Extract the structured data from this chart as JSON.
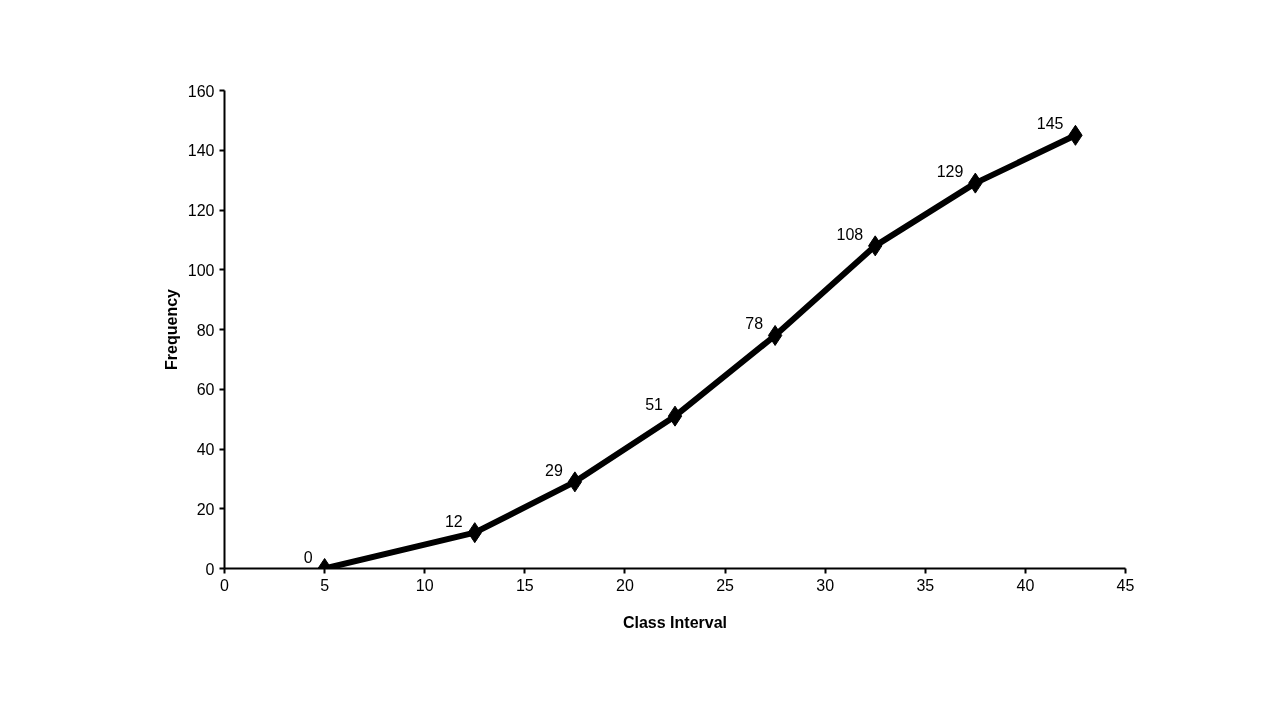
{
  "chart_data": {
    "type": "line",
    "xlabel": "Class Interval",
    "ylabel": "Frequency",
    "x": [
      5,
      12.5,
      17.5,
      22.5,
      27.5,
      32.5,
      37.5,
      42.5
    ],
    "series": [
      {
        "color": "#000000",
        "values": [
          0,
          12,
          29,
          51,
          78,
          108,
          129,
          145
        ]
      }
    ],
    "xlim": [
      0,
      45
    ],
    "xticks": [
      0,
      5,
      10,
      15,
      20,
      25,
      30,
      35,
      40,
      45
    ],
    "ylim": [
      0,
      160
    ],
    "yticks": [
      0,
      20,
      40,
      60,
      80,
      100,
      120,
      140,
      160
    ],
    "grid": false,
    "marker": "diamond",
    "line_style": "solid",
    "data_labels": true
  }
}
